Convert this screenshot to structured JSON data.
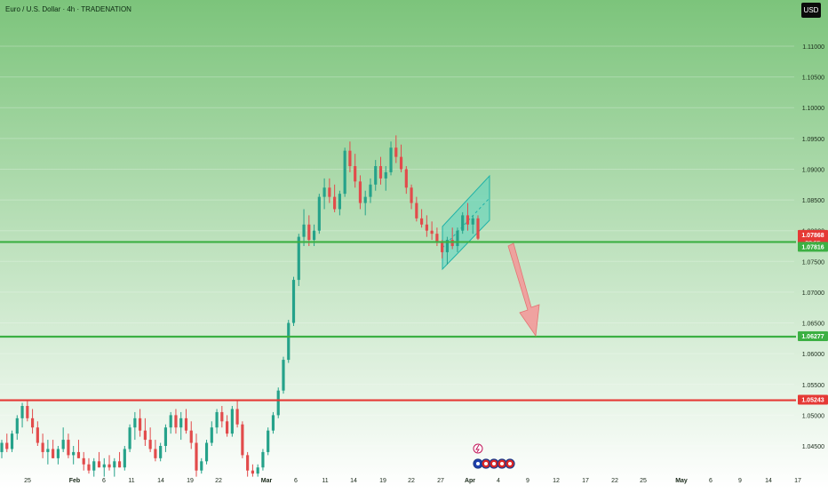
{
  "header": {
    "title": "Euro / U.S. Dollar · 4h · TRADENATION",
    "currency": "USD"
  },
  "colors": {
    "bg_top": "#7cc47b",
    "bg_bottom": "#ffffff",
    "up": "#25a28a",
    "down": "#e24b4b",
    "green_line": "#3cb043",
    "red_line": "#e53935",
    "channel_fill": "#45d0c0",
    "channel_stroke": "#1fb3a8",
    "arrow": "#f29a9a"
  },
  "chart_data": {
    "type": "candlestick",
    "ylim": [
      1.04,
      1.114
    ],
    "y_ticks": [
      1.045,
      1.05,
      1.055,
      1.06,
      1.065,
      1.07,
      1.075,
      1.08,
      1.085,
      1.09,
      1.095,
      1.1,
      1.105,
      1.11
    ],
    "y_tick_labels": [
      "1.04500",
      "1.05000",
      "1.05500",
      "1.06000",
      "1.06500",
      "1.07000",
      "1.07500",
      "1.08000",
      "1.08500",
      "1.09000",
      "1.09500",
      "1.10000",
      "1.10500",
      "1.11000"
    ],
    "x_ticks": [
      "25",
      "Feb",
      "6",
      "11",
      "14",
      "19",
      "22",
      "Mar",
      "6",
      "11",
      "14",
      "19",
      "22",
      "27",
      "Apr",
      "4",
      "9",
      "12",
      "17",
      "22",
      "25",
      "May",
      "6",
      "9",
      "14",
      "17"
    ],
    "hlines": [
      {
        "price": 1.07816,
        "color": "green"
      },
      {
        "price": 1.06277,
        "color": "green"
      },
      {
        "price": 1.05243,
        "color": "red"
      }
    ],
    "price_labels": [
      {
        "text": "1.07868",
        "sub": "38:55",
        "color": "red"
      },
      {
        "text": "1.07816",
        "color": "green"
      },
      {
        "text": "1.06277",
        "color": "green"
      },
      {
        "text": "1.05243",
        "color": "red"
      }
    ],
    "candles": [
      [
        1.044,
        1.046,
        1.043,
        1.0455
      ],
      [
        1.0455,
        1.047,
        1.044,
        1.0445
      ],
      [
        1.0445,
        1.0475,
        1.044,
        1.047
      ],
      [
        1.047,
        1.05,
        1.046,
        1.0495
      ],
      [
        1.0495,
        1.052,
        1.048,
        1.0515
      ],
      [
        1.0515,
        1.0525,
        1.049,
        1.0495
      ],
      [
        1.0495,
        1.051,
        1.047,
        1.048
      ],
      [
        1.048,
        1.049,
        1.045,
        1.0455
      ],
      [
        1.0455,
        1.047,
        1.043,
        1.044
      ],
      [
        1.044,
        1.046,
        1.042,
        1.0445
      ],
      [
        1.0445,
        1.046,
        1.043,
        1.043
      ],
      [
        1.043,
        1.045,
        1.042,
        1.0445
      ],
      [
        1.0445,
        1.048,
        1.044,
        1.046
      ],
      [
        1.046,
        1.047,
        1.043,
        1.0435
      ],
      [
        1.0435,
        1.045,
        1.042,
        1.044
      ],
      [
        1.044,
        1.046,
        1.043,
        1.043
      ],
      [
        1.043,
        1.044,
        1.041,
        1.042
      ],
      [
        1.042,
        1.043,
        1.0405,
        1.041
      ],
      [
        1.041,
        1.043,
        1.04,
        1.0425
      ],
      [
        1.0425,
        1.044,
        1.0415,
        1.0415
      ],
      [
        1.0415,
        1.043,
        1.04,
        1.042
      ],
      [
        1.042,
        1.0435,
        1.041,
        1.0415
      ],
      [
        1.0415,
        1.043,
        1.04,
        1.0425
      ],
      [
        1.0425,
        1.044,
        1.0415,
        1.0415
      ],
      [
        1.0415,
        1.045,
        1.041,
        1.0445
      ],
      [
        1.0445,
        1.0485,
        1.044,
        1.048
      ],
      [
        1.048,
        1.0505,
        1.046,
        1.0495
      ],
      [
        1.0495,
        1.051,
        1.0465,
        1.0475
      ],
      [
        1.0475,
        1.0495,
        1.045,
        1.046
      ],
      [
        1.046,
        1.048,
        1.044,
        1.0445
      ],
      [
        1.0445,
        1.046,
        1.0425,
        1.043
      ],
      [
        1.043,
        1.0455,
        1.0425,
        1.045
      ],
      [
        1.045,
        1.0485,
        1.044,
        1.048
      ],
      [
        1.048,
        1.0505,
        1.047,
        1.05
      ],
      [
        1.05,
        1.051,
        1.047,
        1.048
      ],
      [
        1.048,
        1.0505,
        1.046,
        1.0495
      ],
      [
        1.0495,
        1.051,
        1.047,
        1.0475
      ],
      [
        1.0475,
        1.049,
        1.0445,
        1.0455
      ],
      [
        1.0455,
        1.047,
        1.04,
        1.041
      ],
      [
        1.041,
        1.043,
        1.0405,
        1.0425
      ],
      [
        1.0425,
        1.046,
        1.042,
        1.0455
      ],
      [
        1.0455,
        1.049,
        1.045,
        1.048
      ],
      [
        1.048,
        1.051,
        1.047,
        1.0505
      ],
      [
        1.0505,
        1.0515,
        1.048,
        1.049
      ],
      [
        1.049,
        1.05,
        1.0465,
        1.047
      ],
      [
        1.047,
        1.0515,
        1.0465,
        1.051
      ],
      [
        1.051,
        1.0525,
        1.048,
        1.0485
      ],
      [
        1.0485,
        1.049,
        1.043,
        1.0435
      ],
      [
        1.0435,
        1.044,
        1.04,
        1.041
      ],
      [
        1.041,
        1.042,
        1.04,
        1.0405
      ],
      [
        1.0405,
        1.042,
        1.04,
        1.0415
      ],
      [
        1.0415,
        1.0445,
        1.041,
        1.044
      ],
      [
        1.044,
        1.048,
        1.0435,
        1.0475
      ],
      [
        1.0475,
        1.0505,
        1.047,
        1.05
      ],
      [
        1.05,
        1.0545,
        1.0495,
        1.054
      ],
      [
        1.054,
        1.0595,
        1.0535,
        1.059
      ],
      [
        1.059,
        1.0655,
        1.0585,
        1.065
      ],
      [
        1.065,
        1.0725,
        1.0645,
        1.072
      ],
      [
        1.072,
        1.0795,
        1.071,
        1.079
      ],
      [
        1.079,
        1.0835,
        1.0775,
        1.081
      ],
      [
        1.081,
        1.0825,
        1.0775,
        1.0785
      ],
      [
        1.0785,
        1.081,
        1.0775,
        1.08
      ],
      [
        1.08,
        1.086,
        1.0795,
        1.0855
      ],
      [
        1.0855,
        1.0885,
        1.0835,
        1.087
      ],
      [
        1.087,
        1.0885,
        1.0845,
        1.0855
      ],
      [
        1.0855,
        1.0875,
        1.083,
        1.0835
      ],
      [
        1.0835,
        1.0865,
        1.0825,
        1.086
      ],
      [
        1.086,
        1.0935,
        1.0855,
        1.093
      ],
      [
        1.093,
        1.0945,
        1.0895,
        1.0905
      ],
      [
        1.0905,
        1.0925,
        1.087,
        1.088
      ],
      [
        1.088,
        1.089,
        1.0835,
        1.0845
      ],
      [
        1.0845,
        1.0865,
        1.0825,
        1.0855
      ],
      [
        1.0855,
        1.0885,
        1.0845,
        1.0875
      ],
      [
        1.0875,
        1.0915,
        1.0865,
        1.0905
      ],
      [
        1.0905,
        1.092,
        1.0875,
        1.0885
      ],
      [
        1.0885,
        1.0905,
        1.0865,
        1.0895
      ],
      [
        1.0895,
        1.0945,
        1.089,
        1.0935
      ],
      [
        1.0935,
        1.0955,
        1.091,
        1.092
      ],
      [
        1.092,
        1.094,
        1.0895,
        1.09
      ],
      [
        1.09,
        1.0905,
        1.086,
        1.087
      ],
      [
        1.087,
        1.0875,
        1.0835,
        1.0845
      ],
      [
        1.0845,
        1.0855,
        1.0815,
        1.082
      ],
      [
        1.082,
        1.0835,
        1.0805,
        1.081
      ],
      [
        1.081,
        1.0825,
        1.079,
        1.08
      ],
      [
        1.08,
        1.0815,
        1.0785,
        1.0795
      ],
      [
        1.0795,
        1.0805,
        1.0775,
        1.078
      ],
      [
        1.078,
        1.0785,
        1.0755,
        1.0765
      ],
      [
        1.0765,
        1.079,
        1.0745,
        1.0785
      ],
      [
        1.0785,
        1.0805,
        1.077,
        1.0775
      ],
      [
        1.0775,
        1.0805,
        1.0765,
        1.08
      ],
      [
        1.08,
        1.083,
        1.0795,
        1.0825
      ],
      [
        1.0825,
        1.0845,
        1.08,
        1.081
      ],
      [
        1.081,
        1.0825,
        1.0795,
        1.082
      ],
      [
        1.082,
        1.0825,
        1.0785,
        1.0787
      ]
    ]
  }
}
